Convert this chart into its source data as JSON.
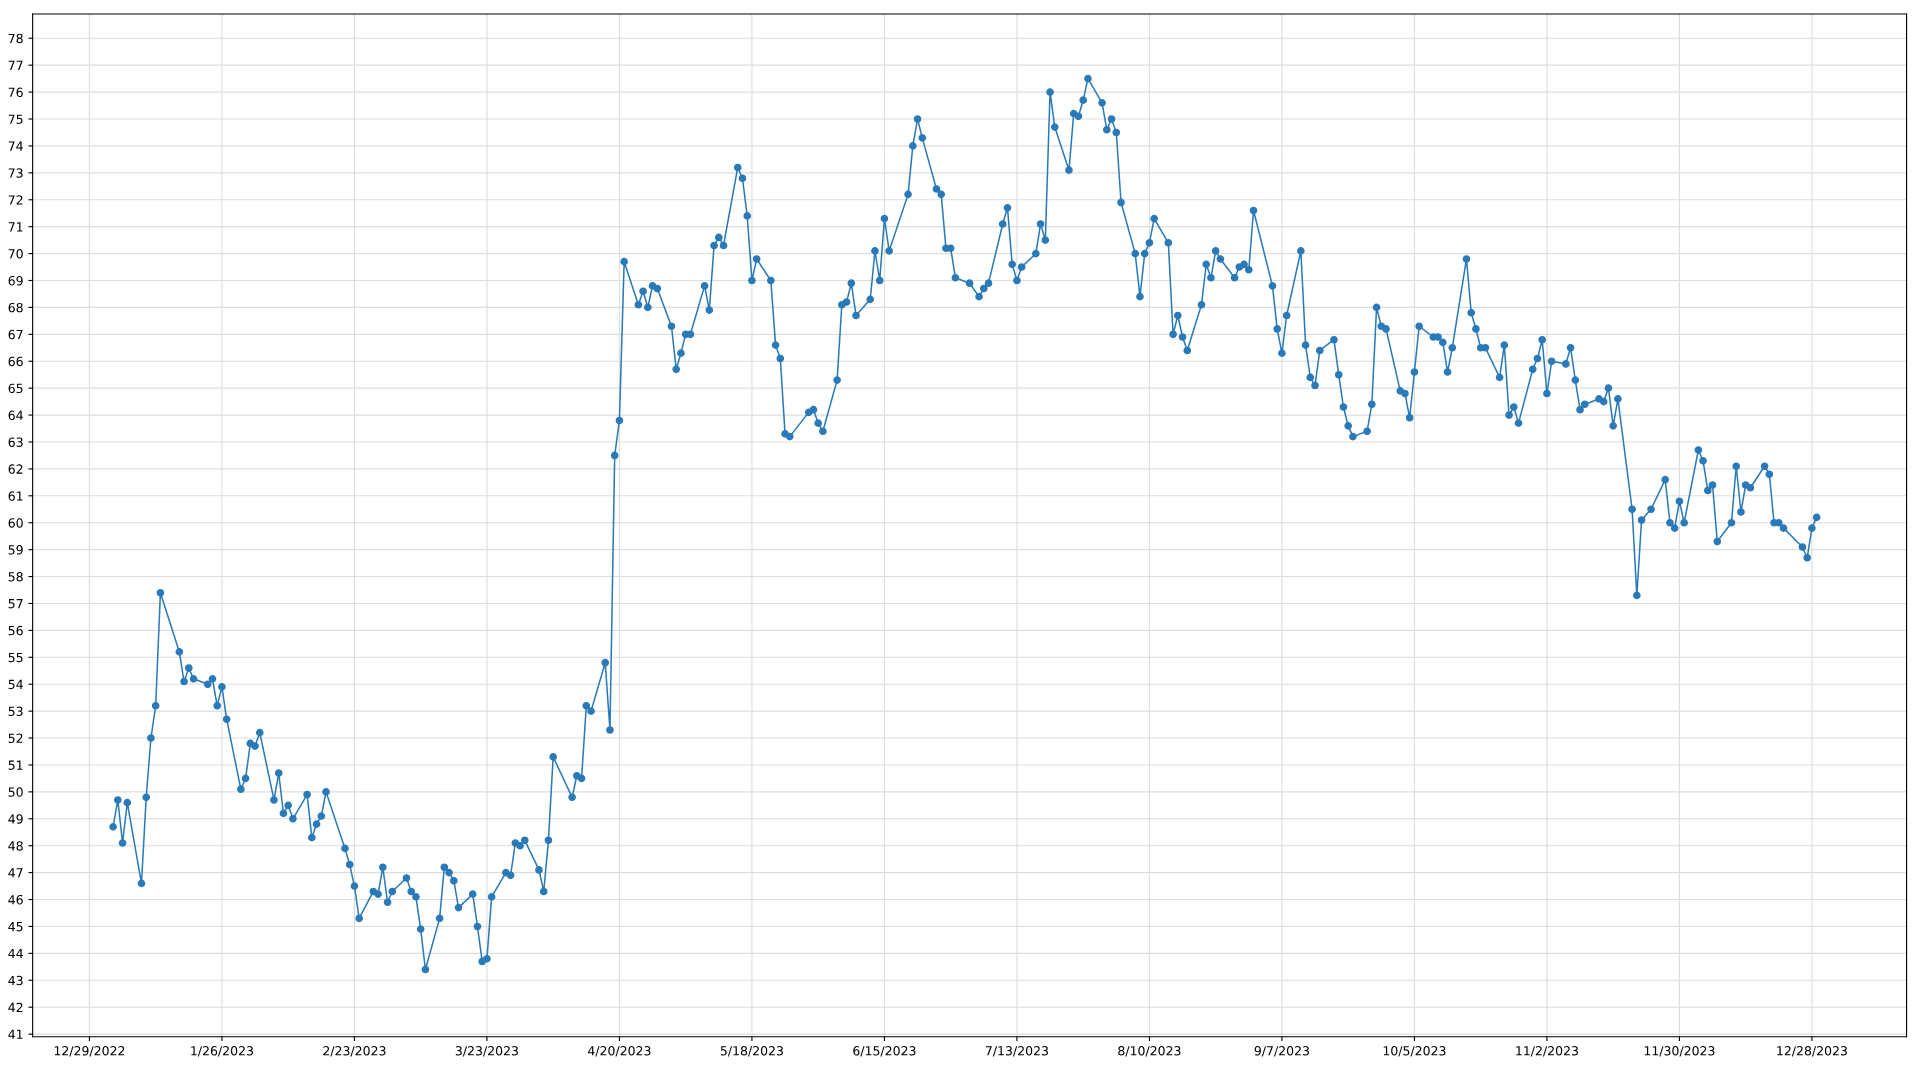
{
  "chart_data": {
    "type": "line",
    "marker": "circle",
    "line_style": "solid",
    "grid": true,
    "legend": false,
    "xlim": [
      "2022-12-17",
      "2024-01-17"
    ],
    "xticks": [
      {
        "value": "2022-12-29",
        "label": "12/29/2022"
      },
      {
        "value": "2023-01-26",
        "label": "1/26/2023"
      },
      {
        "value": "2023-02-23",
        "label": "2/23/2023"
      },
      {
        "value": "2023-03-23",
        "label": "3/23/2023"
      },
      {
        "value": "2023-04-20",
        "label": "4/20/2023"
      },
      {
        "value": "2023-05-18",
        "label": "5/18/2023"
      },
      {
        "value": "2023-06-15",
        "label": "6/15/2023"
      },
      {
        "value": "2023-07-13",
        "label": "7/13/2023"
      },
      {
        "value": "2023-08-10",
        "label": "8/10/2023"
      },
      {
        "value": "2023-09-07",
        "label": "9/7/2023"
      },
      {
        "value": "2023-10-05",
        "label": "10/5/2023"
      },
      {
        "value": "2023-11-02",
        "label": "11/2/2023"
      },
      {
        "value": "2023-11-30",
        "label": "11/30/2023"
      },
      {
        "value": "2023-12-28",
        "label": "12/28/2023"
      }
    ],
    "ylim": [
      40.9,
      78.9
    ],
    "yticks": [
      41,
      42,
      43,
      44,
      45,
      46,
      47,
      48,
      49,
      50,
      51,
      52,
      53,
      54,
      55,
      56,
      57,
      58,
      59,
      60,
      61,
      62,
      63,
      64,
      65,
      66,
      67,
      68,
      69,
      70,
      71,
      72,
      73,
      74,
      75,
      76,
      77,
      78
    ],
    "series": [
      {
        "color": "#2a7ab9",
        "x": [
          "2023-01-03",
          "2023-01-04",
          "2023-01-05",
          "2023-01-06",
          "2023-01-09",
          "2023-01-10",
          "2023-01-11",
          "2023-01-12",
          "2023-01-13",
          "2023-01-17",
          "2023-01-18",
          "2023-01-19",
          "2023-01-20",
          "2023-01-23",
          "2023-01-24",
          "2023-01-25",
          "2023-01-26",
          "2023-01-27",
          "2023-01-30",
          "2023-01-31",
          "2023-02-01",
          "2023-02-02",
          "2023-02-03",
          "2023-02-06",
          "2023-02-07",
          "2023-02-08",
          "2023-02-09",
          "2023-02-10",
          "2023-02-13",
          "2023-02-14",
          "2023-02-15",
          "2023-02-16",
          "2023-02-17",
          "2023-02-21",
          "2023-02-22",
          "2023-02-23",
          "2023-02-24",
          "2023-02-27",
          "2023-02-28",
          "2023-03-01",
          "2023-03-02",
          "2023-03-03",
          "2023-03-06",
          "2023-03-07",
          "2023-03-08",
          "2023-03-09",
          "2023-03-10",
          "2023-03-13",
          "2023-03-14",
          "2023-03-15",
          "2023-03-16",
          "2023-03-17",
          "2023-03-20",
          "2023-03-21",
          "2023-03-22",
          "2023-03-23",
          "2023-03-24",
          "2023-03-27",
          "2023-03-28",
          "2023-03-29",
          "2023-03-30",
          "2023-03-31",
          "2023-04-03",
          "2023-04-04",
          "2023-04-05",
          "2023-04-06",
          "2023-04-10",
          "2023-04-11",
          "2023-04-12",
          "2023-04-13",
          "2023-04-14",
          "2023-04-17",
          "2023-04-18",
          "2023-04-19",
          "2023-04-20",
          "2023-04-21",
          "2023-04-24",
          "2023-04-25",
          "2023-04-26",
          "2023-04-27",
          "2023-04-28",
          "2023-05-01",
          "2023-05-02",
          "2023-05-03",
          "2023-05-04",
          "2023-05-05",
          "2023-05-08",
          "2023-05-09",
          "2023-05-10",
          "2023-05-11",
          "2023-05-12",
          "2023-05-15",
          "2023-05-16",
          "2023-05-17",
          "2023-05-18",
          "2023-05-19",
          "2023-05-22",
          "2023-05-23",
          "2023-05-24",
          "2023-05-25",
          "2023-05-26",
          "2023-05-30",
          "2023-05-31",
          "2023-06-01",
          "2023-06-02",
          "2023-06-05",
          "2023-06-06",
          "2023-06-07",
          "2023-06-08",
          "2023-06-09",
          "2023-06-12",
          "2023-06-13",
          "2023-06-14",
          "2023-06-15",
          "2023-06-16",
          "2023-06-20",
          "2023-06-21",
          "2023-06-22",
          "2023-06-23",
          "2023-06-26",
          "2023-06-27",
          "2023-06-28",
          "2023-06-29",
          "2023-06-30",
          "2023-07-03",
          "2023-07-05",
          "2023-07-06",
          "2023-07-07",
          "2023-07-10",
          "2023-07-11",
          "2023-07-12",
          "2023-07-13",
          "2023-07-14",
          "2023-07-17",
          "2023-07-18",
          "2023-07-19",
          "2023-07-20",
          "2023-07-21",
          "2023-07-24",
          "2023-07-25",
          "2023-07-26",
          "2023-07-27",
          "2023-07-28",
          "2023-07-31",
          "2023-08-01",
          "2023-08-02",
          "2023-08-03",
          "2023-08-04",
          "2023-08-07",
          "2023-08-08",
          "2023-08-09",
          "2023-08-10",
          "2023-08-11",
          "2023-08-14",
          "2023-08-15",
          "2023-08-16",
          "2023-08-17",
          "2023-08-18",
          "2023-08-21",
          "2023-08-22",
          "2023-08-23",
          "2023-08-24",
          "2023-08-25",
          "2023-08-28",
          "2023-08-29",
          "2023-08-30",
          "2023-08-31",
          "2023-09-01",
          "2023-09-05",
          "2023-09-06",
          "2023-09-07",
          "2023-09-08",
          "2023-09-11",
          "2023-09-12",
          "2023-09-13",
          "2023-09-14",
          "2023-09-15",
          "2023-09-18",
          "2023-09-19",
          "2023-09-20",
          "2023-09-21",
          "2023-09-22",
          "2023-09-25",
          "2023-09-26",
          "2023-09-27",
          "2023-09-28",
          "2023-09-29",
          "2023-10-02",
          "2023-10-03",
          "2023-10-04",
          "2023-10-05",
          "2023-10-06",
          "2023-10-09",
          "2023-10-10",
          "2023-10-11",
          "2023-10-12",
          "2023-10-13",
          "2023-10-16",
          "2023-10-17",
          "2023-10-18",
          "2023-10-19",
          "2023-10-20",
          "2023-10-23",
          "2023-10-24",
          "2023-10-25",
          "2023-10-26",
          "2023-10-27",
          "2023-10-30",
          "2023-10-31",
          "2023-11-01",
          "2023-11-02",
          "2023-11-03",
          "2023-11-06",
          "2023-11-07",
          "2023-11-08",
          "2023-11-09",
          "2023-11-10",
          "2023-11-13",
          "2023-11-14",
          "2023-11-15",
          "2023-11-16",
          "2023-11-17",
          "2023-11-20",
          "2023-11-21",
          "2023-11-22",
          "2023-11-24",
          "2023-11-27",
          "2023-11-28",
          "2023-11-29",
          "2023-11-30",
          "2023-12-01",
          "2023-12-04",
          "2023-12-05",
          "2023-12-06",
          "2023-12-07",
          "2023-12-08",
          "2023-12-11",
          "2023-12-12",
          "2023-12-13",
          "2023-12-14",
          "2023-12-15",
          "2023-12-18",
          "2023-12-19",
          "2023-12-20",
          "2023-12-21",
          "2023-12-22",
          "2023-12-26",
          "2023-12-27",
          "2023-12-28",
          "2023-12-29"
        ],
        "values": [
          48.7,
          49.7,
          48.1,
          49.6,
          46.6,
          49.8,
          52.0,
          53.2,
          57.4,
          55.2,
          54.1,
          54.6,
          54.2,
          54.0,
          54.2,
          53.2,
          53.9,
          52.7,
          50.1,
          50.5,
          51.8,
          51.7,
          52.2,
          49.7,
          50.7,
          49.2,
          49.5,
          49.0,
          49.9,
          48.3,
          48.8,
          49.1,
          50.0,
          47.9,
          47.3,
          46.5,
          45.3,
          46.3,
          46.2,
          47.2,
          45.9,
          46.3,
          46.8,
          46.3,
          46.1,
          44.9,
          43.4,
          45.3,
          47.2,
          47.0,
          46.7,
          45.7,
          46.2,
          45.0,
          43.7,
          43.8,
          46.1,
          47.0,
          46.9,
          48.1,
          48.0,
          48.2,
          47.1,
          46.3,
          48.2,
          51.3,
          49.8,
          50.6,
          50.5,
          53.2,
          53.0,
          54.8,
          52.3,
          62.5,
          63.8,
          69.7,
          68.1,
          68.6,
          68.0,
          68.8,
          68.7,
          67.3,
          65.7,
          66.3,
          67.0,
          67.0,
          68.8,
          67.9,
          70.3,
          70.6,
          70.3,
          73.2,
          72.8,
          71.4,
          69.0,
          69.8,
          69.0,
          66.6,
          66.1,
          63.3,
          63.2,
          64.1,
          64.2,
          63.7,
          63.4,
          65.3,
          68.1,
          68.2,
          68.9,
          67.7,
          68.3,
          70.1,
          69.0,
          71.3,
          70.1,
          72.2,
          74.0,
          75.0,
          74.3,
          72.4,
          72.2,
          70.2,
          70.2,
          69.1,
          68.9,
          68.4,
          68.7,
          68.9,
          71.1,
          71.7,
          69.6,
          69.0,
          69.5,
          70.0,
          71.1,
          70.5,
          76.0,
          74.7,
          73.1,
          75.2,
          75.1,
          75.7,
          76.5,
          75.6,
          74.6,
          75.0,
          74.5,
          71.9,
          70.0,
          68.4,
          70.0,
          70.4,
          71.3,
          70.4,
          67.0,
          67.7,
          66.9,
          66.4,
          68.1,
          69.6,
          69.1,
          70.1,
          69.8,
          69.1,
          69.5,
          69.6,
          69.4,
          71.6,
          68.8,
          67.2,
          66.3,
          67.7,
          70.1,
          66.6,
          65.4,
          65.1,
          66.4,
          66.8,
          65.5,
          64.3,
          63.6,
          63.2,
          63.4,
          64.4,
          68.0,
          67.3,
          67.2,
          64.9,
          64.8,
          63.9,
          65.6,
          67.3,
          66.9,
          66.9,
          66.7,
          65.6,
          66.5,
          69.8,
          67.8,
          67.2,
          66.5,
          66.5,
          65.4,
          66.6,
          64.0,
          64.3,
          63.7,
          65.7,
          66.1,
          66.8,
          64.8,
          66.0,
          65.9,
          66.5,
          65.3,
          64.2,
          64.4,
          64.6,
          64.5,
          65.0,
          63.6,
          64.6,
          60.5,
          57.3,
          60.1,
          60.5,
          61.6,
          60.0,
          59.8,
          60.8,
          60.0,
          62.7,
          62.3,
          61.2,
          61.4,
          59.3,
          60.0,
          62.1,
          60.4,
          61.4,
          61.3,
          62.1,
          61.8,
          60.0,
          60.0,
          59.8,
          59.1,
          58.7,
          59.8,
          60.2
        ]
      }
    ]
  }
}
